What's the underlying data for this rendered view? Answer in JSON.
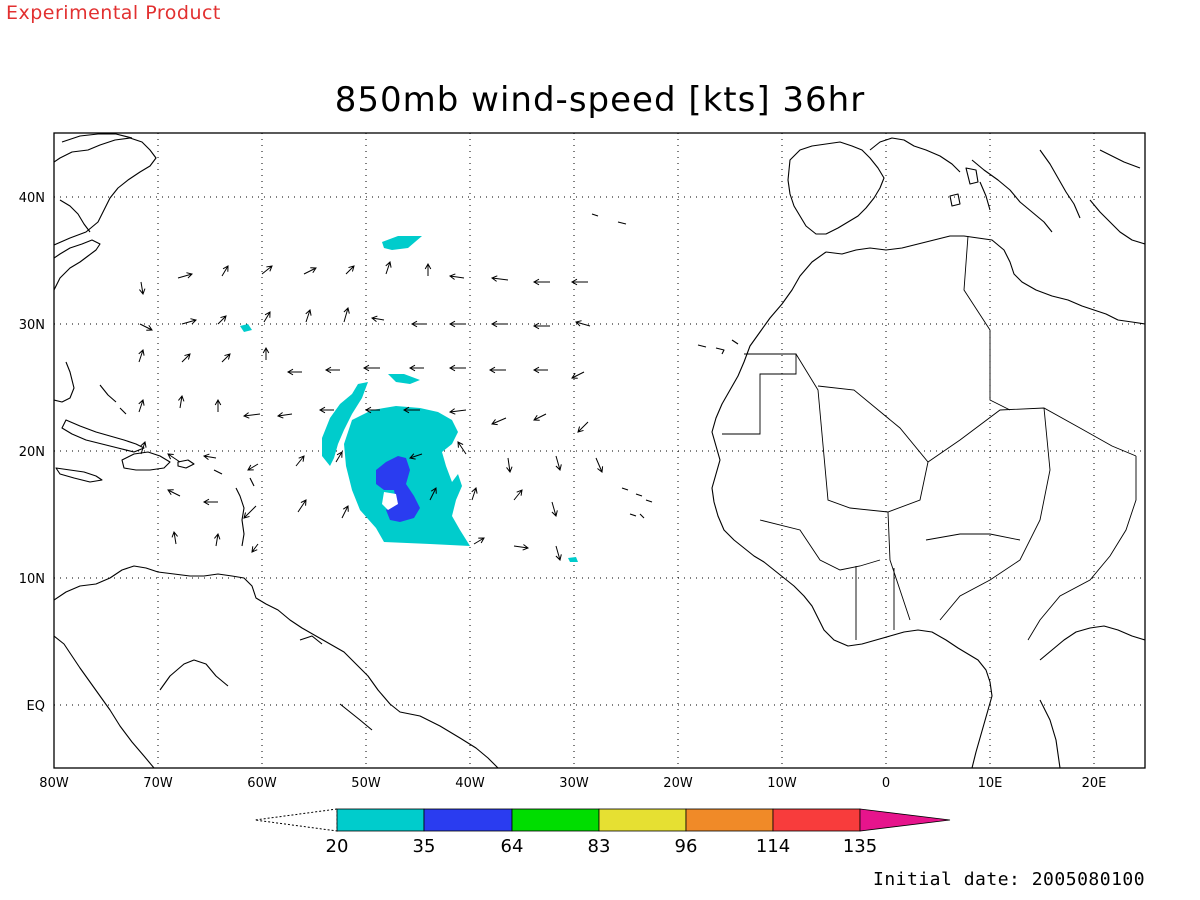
{
  "product_note": "Experimental Product",
  "title": "850mb wind-speed [kts] 36hr",
  "initial_date": "Initial date: 2005080100",
  "map": {
    "lon_range": [
      -80,
      25
    ],
    "lat_range": [
      -6,
      45
    ],
    "lon_ticks": [
      "80W",
      "70W",
      "60W",
      "50W",
      "40W",
      "30W",
      "20W",
      "10W",
      "0",
      "10E",
      "20E"
    ],
    "lat_ticks": [
      "40N",
      "30N",
      "20N",
      "10N",
      "EQ"
    ],
    "lon_tick_values": [
      -80,
      -70,
      -60,
      -50,
      -40,
      -30,
      -20,
      -10,
      0,
      10,
      20
    ],
    "lat_tick_values": [
      40,
      30,
      20,
      10,
      0
    ],
    "grid": "dotted"
  },
  "colorbar": {
    "levels": [
      "20",
      "35",
      "64",
      "83",
      "96",
      "114",
      "135"
    ],
    "colors": [
      "#00cccc",
      "#2a3cf0",
      "#00dd00",
      "#e6e032",
      "#f08a28",
      "#f83c3c",
      "#e6148c"
    ]
  },
  "colors": {
    "ws_20_35": "#00cccc",
    "ws_35_64": "#2a3cf0",
    "note_red": "#e23030"
  }
}
